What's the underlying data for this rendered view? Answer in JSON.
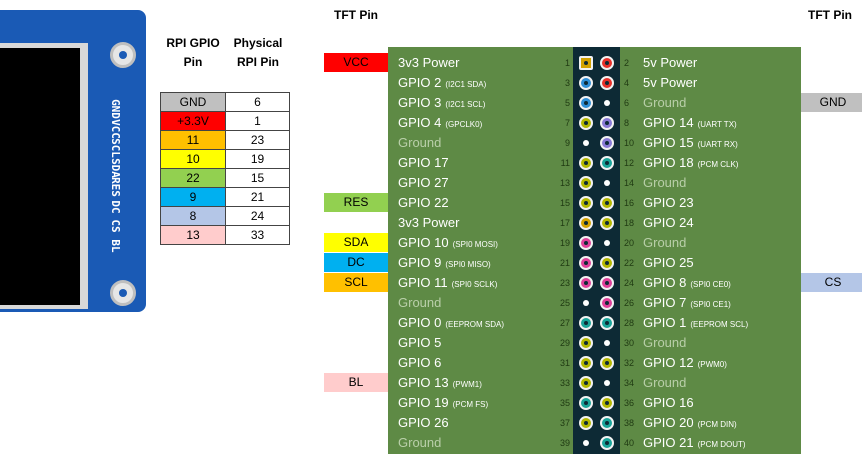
{
  "headers": {
    "rpi_gpio_pin": "RPI GPIO Pin",
    "physical_rpi_pin": "Physical RPI Pin",
    "tft_pin_left": "TFT Pin",
    "tft_pin_right": "TFT Pin"
  },
  "tft_module": {
    "pins": [
      "GND",
      "VCC",
      "SCL",
      "SDA",
      "RES",
      "DC",
      "CS",
      "BL"
    ],
    "board_color": "#1a5ab5"
  },
  "mapping_table": [
    {
      "gpio": "GND",
      "physical": "6",
      "color": "#c0c0c0"
    },
    {
      "gpio": "+3.3V",
      "physical": "1",
      "color": "#ff0000"
    },
    {
      "gpio": "11",
      "physical": "23",
      "color": "#ffc000"
    },
    {
      "gpio": "10",
      "physical": "19",
      "color": "#ffff00"
    },
    {
      "gpio": "22",
      "physical": "15",
      "color": "#92d050"
    },
    {
      "gpio": "9",
      "physical": "21",
      "color": "#00b0f0"
    },
    {
      "gpio": "8",
      "physical": "24",
      "color": "#b4c6e7"
    },
    {
      "gpio": "13",
      "physical": "33",
      "color": "#ffcccc"
    }
  ],
  "tft_left_labels": [
    {
      "text": "VCC",
      "row": 0,
      "color": "#ff0000"
    },
    {
      "text": "RES",
      "row": 7,
      "color": "#92d050"
    },
    {
      "text": "SDA",
      "row": 9,
      "color": "#ffff00"
    },
    {
      "text": "DC",
      "row": 10,
      "color": "#00b0f0"
    },
    {
      "text": "SCL",
      "row": 11,
      "color": "#ffc000"
    },
    {
      "text": "BL",
      "row": 16,
      "color": "#ffcccc"
    }
  ],
  "tft_right_labels": [
    {
      "text": "GND",
      "row": 2,
      "color": "#c0c0c0"
    },
    {
      "text": "CS",
      "row": 11,
      "color": "#b4c6e7"
    }
  ],
  "gpio_rows": [
    {
      "lpin": "1",
      "lname": "3v3 Power",
      "lsub": "",
      "ltype": "p33",
      "rpin": "2",
      "rname": "5v Power",
      "rsub": "",
      "rtype": "p5"
    },
    {
      "lpin": "3",
      "lname": "GPIO 2",
      "lsub": "(I2C1 SDA)",
      "ltype": "i2c",
      "rpin": "4",
      "rname": "5v Power",
      "rsub": "",
      "rtype": "p5"
    },
    {
      "lpin": "5",
      "lname": "GPIO 3",
      "lsub": "(I2C1 SCL)",
      "ltype": "i2c",
      "rpin": "6",
      "rname": "Ground",
      "rsub": "",
      "rtype": "gnd"
    },
    {
      "lpin": "7",
      "lname": "GPIO 4",
      "lsub": "(GPCLK0)",
      "ltype": "gpio",
      "rpin": "8",
      "rname": "GPIO 14",
      "rsub": "(UART TX)",
      "rtype": "uart"
    },
    {
      "lpin": "9",
      "lname": "Ground",
      "lsub": "",
      "ltype": "gnd",
      "rpin": "10",
      "rname": "GPIO 15",
      "rsub": "(UART RX)",
      "rtype": "uart"
    },
    {
      "lpin": "11",
      "lname": "GPIO 17",
      "lsub": "",
      "ltype": "gpio",
      "rpin": "12",
      "rname": "GPIO 18",
      "rsub": "(PCM CLK)",
      "rtype": "pcm"
    },
    {
      "lpin": "13",
      "lname": "GPIO 27",
      "lsub": "",
      "ltype": "gpio",
      "rpin": "14",
      "rname": "Ground",
      "rsub": "",
      "rtype": "gnd"
    },
    {
      "lpin": "15",
      "lname": "GPIO 22",
      "lsub": "",
      "ltype": "gpio",
      "rpin": "16",
      "rname": "GPIO 23",
      "rsub": "",
      "rtype": "gpio"
    },
    {
      "lpin": "17",
      "lname": "3v3 Power",
      "lsub": "",
      "ltype": "p33",
      "rpin": "18",
      "rname": "GPIO 24",
      "rsub": "",
      "rtype": "gpio"
    },
    {
      "lpin": "19",
      "lname": "GPIO 10",
      "lsub": "(SPI0 MOSI)",
      "ltype": "spi",
      "rpin": "20",
      "rname": "Ground",
      "rsub": "",
      "rtype": "gnd"
    },
    {
      "lpin": "21",
      "lname": "GPIO 9",
      "lsub": "(SPI0 MISO)",
      "ltype": "spi",
      "rpin": "22",
      "rname": "GPIO 25",
      "rsub": "",
      "rtype": "gpio"
    },
    {
      "lpin": "23",
      "lname": "GPIO 11",
      "lsub": "(SPI0 SCLK)",
      "ltype": "spi",
      "rpin": "24",
      "rname": "GPIO 8",
      "rsub": "(SPI0 CE0)",
      "rtype": "spi"
    },
    {
      "lpin": "25",
      "lname": "Ground",
      "lsub": "",
      "ltype": "gnd",
      "rpin": "26",
      "rname": "GPIO 7",
      "rsub": "(SPI0 CE1)",
      "rtype": "spi"
    },
    {
      "lpin": "27",
      "lname": "GPIO 0",
      "lsub": "(EEPROM SDA)",
      "ltype": "pcm",
      "rpin": "28",
      "rname": "GPIO 1",
      "rsub": "(EEPROM SCL)",
      "rtype": "pcm"
    },
    {
      "lpin": "29",
      "lname": "GPIO 5",
      "lsub": "",
      "ltype": "gpio",
      "rpin": "30",
      "rname": "Ground",
      "rsub": "",
      "rtype": "gnd"
    },
    {
      "lpin": "31",
      "lname": "GPIO 6",
      "lsub": "",
      "ltype": "gpio",
      "rpin": "32",
      "rname": "GPIO 12",
      "rsub": "(PWM0)",
      "rtype": "gpio"
    },
    {
      "lpin": "33",
      "lname": "GPIO 13",
      "lsub": "(PWM1)",
      "ltype": "gpio",
      "rpin": "34",
      "rname": "Ground",
      "rsub": "",
      "rtype": "gnd"
    },
    {
      "lpin": "35",
      "lname": "GPIO 19",
      "lsub": "(PCM FS)",
      "ltype": "pcm",
      "rpin": "36",
      "rname": "GPIO 16",
      "rsub": "",
      "rtype": "gpio"
    },
    {
      "lpin": "37",
      "lname": "GPIO 26",
      "lsub": "",
      "ltype": "gpio",
      "rpin": "38",
      "rname": "GPIO 20",
      "rsub": "(PCM DIN)",
      "rtype": "pcm"
    },
    {
      "lpin": "39",
      "lname": "Ground",
      "lsub": "",
      "ltype": "gnd",
      "rpin": "40",
      "rname": "GPIO 21",
      "rsub": "(PCM DOUT)",
      "rtype": "pcm"
    }
  ],
  "pin_colors": {
    "p33": "#d4a300",
    "p5": "#e8312a",
    "gnd": "#ffffff",
    "gpio": "#b5b800",
    "i2c": "#2f8fd6",
    "uart": "#8a7ad6",
    "spi": "#e0409a",
    "pcm": "#1aa59a"
  },
  "colors": {
    "header_board": "#5e8a45",
    "connector": "#0d2a35"
  }
}
